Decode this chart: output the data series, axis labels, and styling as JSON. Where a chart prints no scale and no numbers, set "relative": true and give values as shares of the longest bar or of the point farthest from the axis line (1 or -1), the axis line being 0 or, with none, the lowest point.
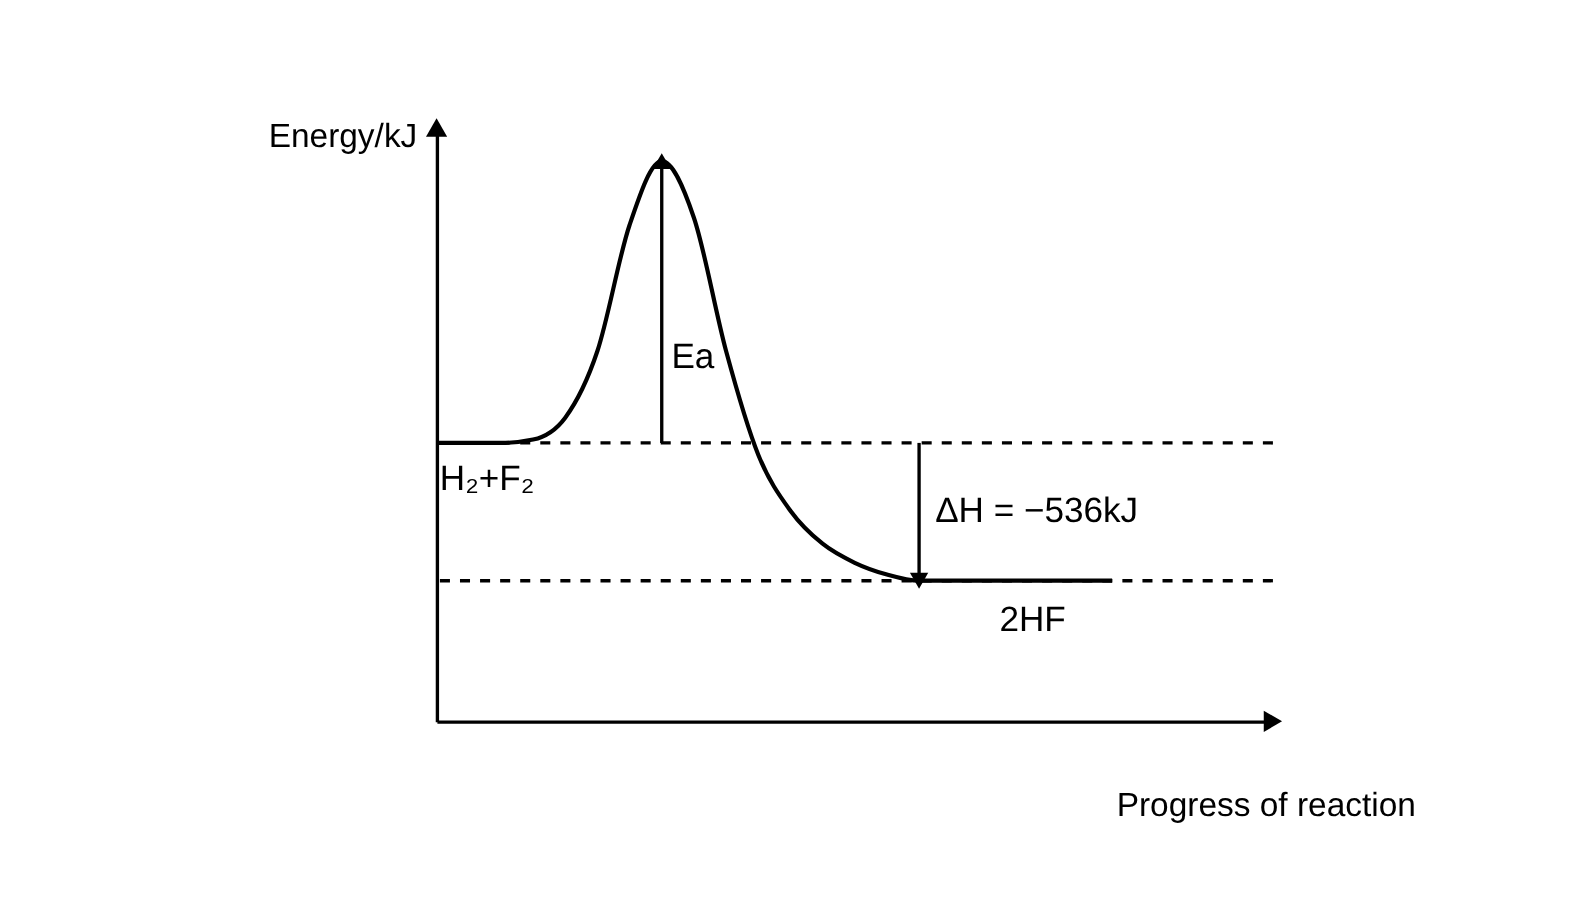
{
  "chart_data": {
    "type": "line",
    "relative": true,
    "xlabel": "Progress of reaction",
    "ylabel": "Energy/kJ",
    "categories": [
      null,
      null,
      null,
      null,
      null,
      null,
      null,
      null,
      null,
      null,
      null,
      null,
      null,
      null,
      null,
      null,
      null,
      null,
      null,
      null,
      null,
      null,
      null,
      null,
      null,
      null,
      null
    ],
    "series": [
      {
        "color": "#000000",
        "values": [
          0.497,
          0.497,
          0.497,
          0.503,
          0.542,
          0.661,
          0.886,
          1.0,
          0.899,
          0.661,
          0.476,
          0.376,
          0.317,
          0.283,
          0.262,
          0.251,
          0.251,
          0.251,
          0.251,
          0.251,
          0.251,
          0.251,
          null,
          null,
          null,
          null,
          null
        ]
      }
    ],
    "ref_lines": [
      {
        "axis": "y",
        "value": 0.497,
        "line_style": "dashed",
        "color": "#000000"
      },
      {
        "axis": "y",
        "value": 0.251,
        "line_style": "dashed",
        "color": "#000000"
      }
    ],
    "annotations": [
      "Ea",
      "H₂+F₂",
      "ΔH = −536kJ",
      "2HF"
    ],
    "marker": "none",
    "line_style": "solid"
  }
}
